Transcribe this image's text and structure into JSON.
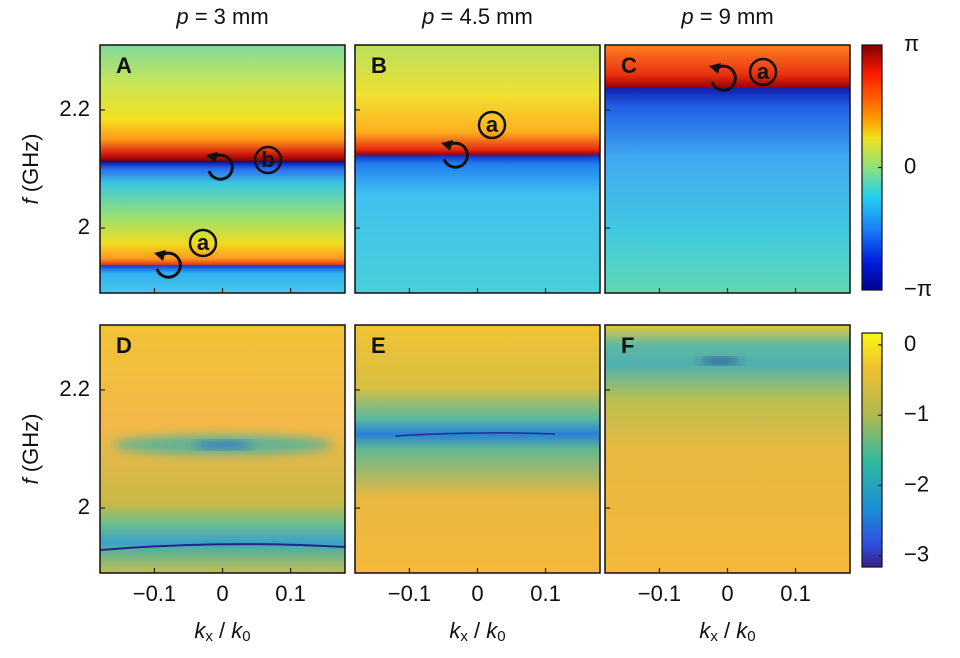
{
  "chart_data": {
    "type": "heatmap-grid",
    "column_titles": [
      [
        "p",
        " = 3 mm"
      ],
      [
        "p",
        " = 4.5 mm"
      ],
      [
        "p",
        " = 9 mm"
      ]
    ],
    "panels": [
      {
        "label": "A",
        "annotations": [
          "b",
          "a"
        ]
      },
      {
        "label": "B",
        "annotations": [
          "a"
        ]
      },
      {
        "label": "C",
        "annotations": [
          "a"
        ]
      },
      {
        "label": "D",
        "annotations": []
      },
      {
        "label": "E",
        "annotations": []
      },
      {
        "label": "F",
        "annotations": []
      }
    ],
    "xlim": [
      -0.18,
      0.18
    ],
    "xticks": [
      {
        "value": -0.1,
        "label": "−0.1"
      },
      0,
      0.1
    ],
    "ylim": [
      1.89,
      2.31
    ],
    "yticks": [
      2,
      2.2
    ],
    "xlabel": [
      "k",
      "x",
      " / ",
      "k",
      "0"
    ],
    "ylabel": [
      "f",
      " (GHz)"
    ],
    "colorbars": [
      {
        "ylim": [
          -3.1416,
          3.1416
        ],
        "yticks": [
          {
            "value": -3.1416,
            "label": "−π"
          },
          0,
          {
            "value": 3.1416,
            "label": "π"
          }
        ]
      },
      {
        "ylim": [
          -3.16,
          0.17
        ],
        "yticks": [
          {
            "value": -3,
            "label": "−3"
          },
          {
            "value": -2,
            "label": "−2"
          },
          {
            "value": -1,
            "label": "−1"
          },
          0
        ]
      }
    ]
  }
}
